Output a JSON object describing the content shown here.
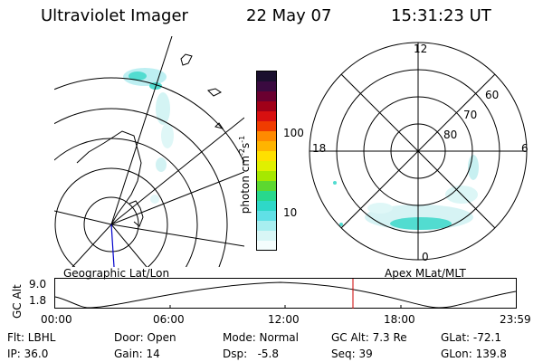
{
  "header": {
    "instrument": "Ultraviolet Imager",
    "date": "22 May 07",
    "time": "15:31:23 UT"
  },
  "left_map": {
    "caption": "Geographic Lat/Lon"
  },
  "right_map": {
    "caption": "Apex MLat/MLT",
    "mlt_labels": [
      "12",
      "18",
      "6",
      "0"
    ],
    "lat_labels": [
      "60",
      "70",
      "80"
    ]
  },
  "colorbar": {
    "unit_label": "photon cm",
    "unit_exp1": "-2",
    "unit_mid": "s",
    "unit_exp2": "-1",
    "tick_labels": [
      "100",
      "10"
    ],
    "colors": [
      "#1a0f2e",
      "#3a0a40",
      "#6a0030",
      "#a00018",
      "#d81010",
      "#f03c00",
      "#ff8a00",
      "#ffb400",
      "#ffe000",
      "#e0f000",
      "#a6e800",
      "#5cd830",
      "#28d88c",
      "#2ed8c8",
      "#60e0e6",
      "#a8eef0",
      "#d8f6f6",
      "#f4fdfd"
    ]
  },
  "alt_plot": {
    "ylabel": "GC Alt",
    "y_ticks": [
      "9.0",
      "1.8"
    ],
    "x_ticks": [
      "00:00",
      "06:00",
      "12:00",
      "18:00",
      "23:59"
    ],
    "current_time_marker": "15:31"
  },
  "info": {
    "flt": "Flt: LBHL",
    "ip": "IP: 36.0",
    "door": "Door: Open",
    "gain": "Gain: 14",
    "mode": "Mode: Normal",
    "dsp": "Dsp:   -5.8",
    "gc_alt": "GC Alt: 7.3 Re",
    "seq": "Seq: 39",
    "glat": "GLat: -72.1",
    "glon": "GLon: 139.8"
  }
}
